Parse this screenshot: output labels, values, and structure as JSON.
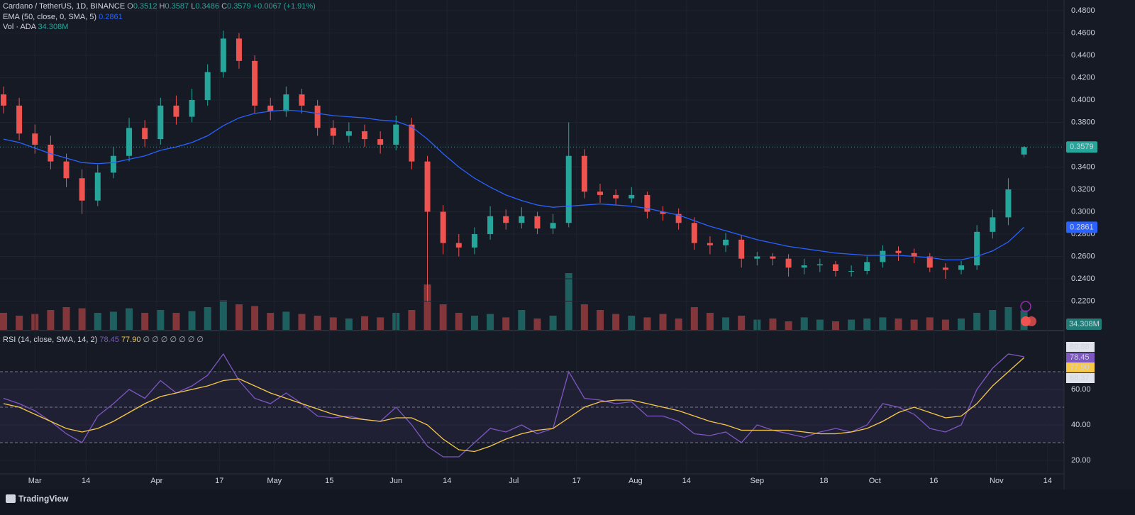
{
  "chart_data": [
    {
      "type": "candlestick",
      "title": "Cardano / TetherUS, 1D, BINANCE",
      "ohlc_letters": [
        "O",
        "H",
        "L",
        "C"
      ],
      "change": "+0.0067 (+1.91%)",
      "up_color": "#26a69a",
      "down_color": "#ef5350",
      "x": [
        0,
        4,
        8,
        12,
        16,
        20,
        24,
        28,
        32,
        36,
        40,
        44,
        48,
        52,
        56,
        60,
        64,
        68,
        72,
        76,
        80,
        84,
        88,
        92,
        96,
        100,
        104,
        108,
        112,
        116,
        120,
        124,
        128,
        132,
        136,
        140,
        144,
        148,
        152,
        156,
        160,
        164,
        168,
        172,
        176,
        180,
        184,
        188,
        192,
        196,
        200,
        204,
        208,
        212,
        216,
        220,
        224,
        228,
        232,
        236,
        240,
        244,
        248,
        252,
        256,
        260
      ],
      "xlim": [
        -0.9,
        270.2
      ],
      "xticks": [
        {
          "value": 8,
          "label": "Mar"
        },
        {
          "value": 21,
          "label": "14"
        },
        {
          "value": 39,
          "label": "Apr"
        },
        {
          "value": 55,
          "label": "17"
        },
        {
          "value": 69,
          "label": "May"
        },
        {
          "value": 83,
          "label": "15"
        },
        {
          "value": 100,
          "label": "Jun"
        },
        {
          "value": 113,
          "label": "14"
        },
        {
          "value": 130,
          "label": "Jul"
        },
        {
          "value": 146,
          "label": "17"
        },
        {
          "value": 161,
          "label": "Aug"
        },
        {
          "value": 174,
          "label": "14"
        },
        {
          "value": 192,
          "label": "Sep"
        },
        {
          "value": 209,
          "label": "18"
        },
        {
          "value": 222,
          "label": "Oct"
        },
        {
          "value": 237,
          "label": "16"
        },
        {
          "value": 253,
          "label": "Nov"
        },
        {
          "value": 266,
          "label": "14"
        }
      ],
      "open": [
        0.405,
        0.395,
        0.37,
        0.36,
        0.345,
        0.33,
        0.31,
        0.335,
        0.35,
        0.375,
        0.365,
        0.395,
        0.385,
        0.4,
        0.425,
        0.455,
        0.435,
        0.395,
        0.39,
        0.405,
        0.395,
        0.375,
        0.368,
        0.372,
        0.365,
        0.36,
        0.378,
        0.345,
        0.3,
        0.272,
        0.268,
        0.28,
        0.296,
        0.29,
        0.296,
        0.285,
        0.29,
        0.35,
        0.318,
        0.315,
        0.312,
        0.315,
        0.3,
        0.298,
        0.29,
        0.272,
        0.27,
        0.275,
        0.258,
        0.26,
        0.258,
        0.25,
        0.252,
        0.253,
        0.247,
        0.247,
        0.255,
        0.265,
        0.263,
        0.26,
        0.25,
        0.248,
        0.252,
        0.282,
        0.295,
        0.3512
      ],
      "high": [
        0.412,
        0.402,
        0.378,
        0.368,
        0.352,
        0.338,
        0.342,
        0.358,
        0.384,
        0.382,
        0.402,
        0.404,
        0.41,
        0.432,
        0.462,
        0.46,
        0.44,
        0.402,
        0.412,
        0.41,
        0.4,
        0.382,
        0.38,
        0.378,
        0.372,
        0.386,
        0.384,
        0.35,
        0.306,
        0.28,
        0.286,
        0.305,
        0.302,
        0.304,
        0.3,
        0.298,
        0.38,
        0.356,
        0.325,
        0.32,
        0.322,
        0.318,
        0.305,
        0.303,
        0.295,
        0.278,
        0.281,
        0.279,
        0.264,
        0.263,
        0.262,
        0.258,
        0.258,
        0.256,
        0.252,
        0.26,
        0.27,
        0.269,
        0.267,
        0.263,
        0.254,
        0.256,
        0.288,
        0.302,
        0.33,
        0.3587
      ],
      "low": [
        0.388,
        0.364,
        0.352,
        0.338,
        0.322,
        0.298,
        0.305,
        0.33,
        0.345,
        0.358,
        0.36,
        0.378,
        0.38,
        0.395,
        0.42,
        0.428,
        0.388,
        0.382,
        0.385,
        0.388,
        0.368,
        0.36,
        0.362,
        0.358,
        0.352,
        0.355,
        0.338,
        0.22,
        0.262,
        0.26,
        0.262,
        0.275,
        0.284,
        0.285,
        0.28,
        0.28,
        0.286,
        0.312,
        0.308,
        0.306,
        0.308,
        0.294,
        0.292,
        0.284,
        0.266,
        0.262,
        0.264,
        0.25,
        0.252,
        0.252,
        0.242,
        0.244,
        0.246,
        0.242,
        0.242,
        0.244,
        0.25,
        0.256,
        0.254,
        0.246,
        0.24,
        0.244,
        0.248,
        0.276,
        0.288,
        0.3486
      ],
      "close": [
        0.395,
        0.37,
        0.36,
        0.345,
        0.33,
        0.31,
        0.335,
        0.35,
        0.375,
        0.365,
        0.395,
        0.385,
        0.4,
        0.425,
        0.455,
        0.435,
        0.395,
        0.39,
        0.405,
        0.395,
        0.375,
        0.368,
        0.372,
        0.365,
        0.36,
        0.378,
        0.345,
        0.3,
        0.272,
        0.268,
        0.28,
        0.296,
        0.29,
        0.296,
        0.285,
        0.29,
        0.35,
        0.318,
        0.315,
        0.312,
        0.315,
        0.3,
        0.298,
        0.29,
        0.272,
        0.27,
        0.275,
        0.258,
        0.26,
        0.258,
        0.25,
        0.252,
        0.253,
        0.247,
        0.247,
        0.255,
        0.265,
        0.263,
        0.26,
        0.25,
        0.248,
        0.252,
        0.282,
        0.295,
        0.32,
        0.3579
      ],
      "ylim": [
        0.1943,
        0.4895
      ],
      "yticks": [
        {
          "value": 0.48,
          "label": "0.4800"
        },
        {
          "value": 0.46,
          "label": "0.4600"
        },
        {
          "value": 0.44,
          "label": "0.4400"
        },
        {
          "value": 0.42,
          "label": "0.4200"
        },
        {
          "value": 0.4,
          "label": "0.4000"
        },
        {
          "value": 0.38,
          "label": "0.3800"
        },
        {
          "value": 0.36,
          "label": "0.3600"
        },
        {
          "value": 0.34,
          "label": "0.3400"
        },
        {
          "value": 0.32,
          "label": "0.3200"
        },
        {
          "value": 0.3,
          "label": "0.3000"
        },
        {
          "value": 0.28,
          "label": "0.2800"
        },
        {
          "value": 0.26,
          "label": "0.2600"
        },
        {
          "value": 0.24,
          "label": "0.2400"
        },
        {
          "value": 0.22,
          "label": "0.2200"
        }
      ],
      "grid": true,
      "ema": {
        "name": "EMA (50, close, 0, SMA, 5)",
        "color": "#2962ff",
        "values": [
          0.365,
          0.362,
          0.357,
          0.352,
          0.348,
          0.344,
          0.343,
          0.344,
          0.347,
          0.35,
          0.355,
          0.358,
          0.362,
          0.368,
          0.377,
          0.384,
          0.388,
          0.39,
          0.391,
          0.39,
          0.388,
          0.386,
          0.385,
          0.384,
          0.382,
          0.381,
          0.376,
          0.365,
          0.352,
          0.34,
          0.33,
          0.322,
          0.315,
          0.31,
          0.306,
          0.304,
          0.305,
          0.306,
          0.307,
          0.306,
          0.305,
          0.303,
          0.3,
          0.297,
          0.292,
          0.287,
          0.283,
          0.279,
          0.275,
          0.272,
          0.269,
          0.267,
          0.265,
          0.263,
          0.262,
          0.261,
          0.261,
          0.261,
          0.26,
          0.259,
          0.257,
          0.257,
          0.26,
          0.265,
          0.273,
          0.2861
        ]
      },
      "volume": {
        "name": "Vol · ADA",
        "label": "34.308M",
        "values": [
          30,
          25,
          28,
          35,
          40,
          38,
          30,
          32,
          38,
          30,
          35,
          30,
          33,
          40,
          52,
          45,
          42,
          30,
          32,
          28,
          25,
          22,
          20,
          24,
          22,
          30,
          35,
          80,
          45,
          30,
          25,
          28,
          22,
          35,
          20,
          25,
          100,
          45,
          35,
          28,
          25,
          22,
          28,
          20,
          40,
          30,
          22,
          25,
          18,
          20,
          15,
          22,
          18,
          15,
          18,
          20,
          22,
          20,
          18,
          22,
          18,
          20,
          30,
          35,
          40,
          34.308
        ]
      }
    },
    {
      "type": "line",
      "title": "RSI (14, close, SMA, 14, 2)",
      "legend_values": [
        "77.90"
      ],
      "na_marks": "∅ ∅ ∅ ∅ ∅ ∅ ∅",
      "badges": [
        "80.88",
        "77.90",
        "68.37"
      ],
      "ylim": [
        13.2,
        92.4
      ],
      "yticks": [
        {
          "value": 60,
          "label": "60.00"
        },
        {
          "value": 40,
          "label": "40.00"
        },
        {
          "value": 20,
          "label": "20.00"
        }
      ],
      "hlines": [
        70,
        50,
        30
      ],
      "band": [
        30,
        70
      ],
      "series": [
        {
          "color": "#7e57c2",
          "values": [
            55,
            52,
            48,
            42,
            35,
            30,
            45,
            52,
            60,
            55,
            65,
            58,
            62,
            68,
            80,
            65,
            55,
            52,
            58,
            52,
            45,
            44,
            45,
            43,
            42,
            50,
            40,
            28,
            22,
            22,
            30,
            38,
            36,
            40,
            35,
            38,
            70,
            55,
            54,
            52,
            53,
            45,
            45,
            42,
            35,
            34,
            36,
            30,
            40,
            37,
            35,
            33,
            36,
            38,
            36,
            40,
            52,
            50,
            46,
            38,
            36,
            40,
            60,
            72,
            80,
            78.45
          ]
        },
        {
          "color": "#f7c948",
          "values": [
            52,
            50,
            46,
            42,
            38,
            36,
            38,
            42,
            47,
            52,
            56,
            58,
            60,
            62,
            65,
            66,
            62,
            58,
            55,
            52,
            49,
            46,
            44,
            43,
            42,
            44,
            44,
            40,
            32,
            26,
            25,
            28,
            32,
            35,
            37,
            38,
            44,
            50,
            53,
            54,
            54,
            52,
            50,
            48,
            45,
            42,
            40,
            37,
            37,
            37,
            37,
            36,
            35,
            35,
            36,
            38,
            42,
            47,
            50,
            47,
            44,
            45,
            52,
            62,
            70,
            77.9
          ]
        }
      ]
    }
  ],
  "branding": "TradingView"
}
